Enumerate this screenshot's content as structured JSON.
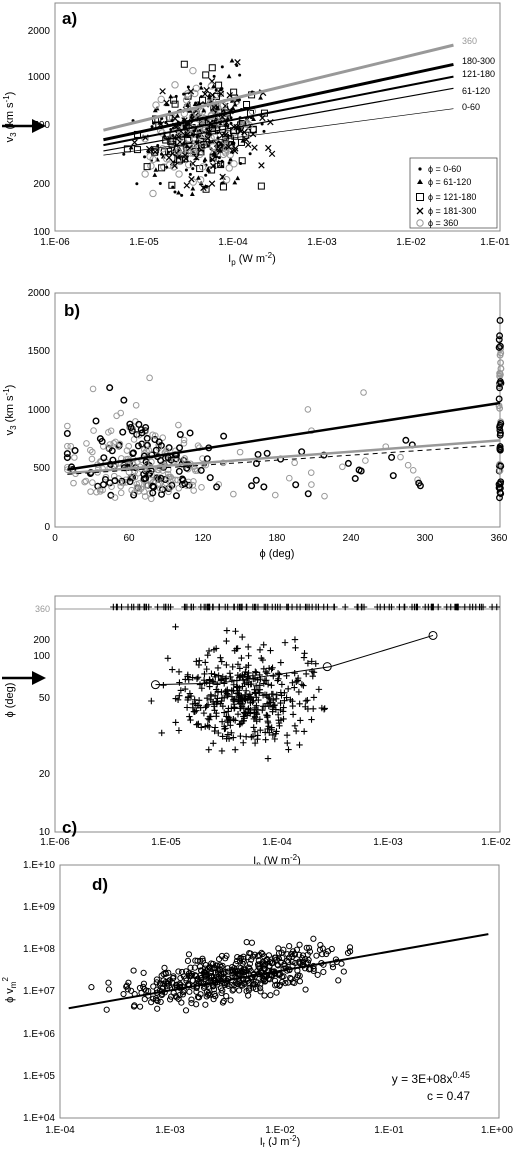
{
  "chart_data": [
    {
      "panel_label": "a)",
      "type": "scatter",
      "xscale": "log",
      "yscale": "log",
      "xlim": [
        1e-06,
        0.1
      ],
      "ylim": [
        100,
        3000
      ],
      "xticks": [
        "1.E-06",
        "1.E-05",
        "1.E-04",
        "1.E-03",
        "1.E-02",
        "1.E-01"
      ],
      "yticks": [
        "100",
        "200",
        "500",
        "1000",
        "2000"
      ],
      "xlabel": "I",
      "xlabel_sub": "p",
      "xlabel_unit": "(W m",
      "xlabel_unit_exp": "-2",
      "xlabel_unit_close": ")",
      "ylabel": "v",
      "ylabel_sub": "3",
      "ylabel_unit": "(km s",
      "ylabel_unit_exp": "-1",
      "ylabel_unit_close": ")",
      "arrow_value": 500,
      "legend_position": "bottom-right",
      "legend": [
        "ϕ = 0-60",
        "ϕ = 61-120",
        "ϕ = 121-180",
        "ϕ = 181-300",
        "ϕ = 360"
      ],
      "fits": [
        {
          "label": "360",
          "from": [
            3.5e-06,
            450
          ],
          "to": [
            0.03,
            1600
          ],
          "color": "#999999",
          "width": 3
        },
        {
          "label": "180-300",
          "from": [
            3.5e-06,
            390
          ],
          "to": [
            0.03,
            1200
          ],
          "color": "#000000",
          "width": 3
        },
        {
          "label": "121-180",
          "from": [
            3.5e-06,
            360
          ],
          "to": [
            0.03,
            1000
          ],
          "color": "#000000",
          "width": 2
        },
        {
          "label": "61-120",
          "from": [
            3.5e-06,
            330
          ],
          "to": [
            0.03,
            840
          ],
          "color": "#000000",
          "width": 1.2
        },
        {
          "label": "0-60",
          "from": [
            3.5e-06,
            310
          ],
          "to": [
            0.03,
            620
          ],
          "color": "#000000",
          "width": 0.7
        }
      ]
    },
    {
      "panel_label": "b)",
      "type": "scatter",
      "xlim": [
        0,
        360
      ],
      "ylim": [
        0,
        2000
      ],
      "xticks": [
        "0",
        "60",
        "120",
        "180",
        "240",
        "300",
        "360"
      ],
      "yticks": [
        "0",
        "500",
        "1000",
        "1500",
        "2000"
      ],
      "xlabel": "ϕ (deg)",
      "ylabel": "v",
      "ylabel_sub": "3",
      "ylabel_unit": "(km s",
      "ylabel_unit_exp": "-1",
      "ylabel_unit_close": ")",
      "fits": [
        {
          "from": [
            10,
            490
          ],
          "to": [
            360,
            1060
          ],
          "color": "#000000",
          "width": 2.5,
          "dash": ""
        },
        {
          "from": [
            10,
            460
          ],
          "to": [
            360,
            740
          ],
          "color": "#999999",
          "width": 2.5,
          "dash": ""
        },
        {
          "from": [
            10,
            450
          ],
          "to": [
            360,
            700
          ],
          "color": "#000000",
          "width": 1,
          "dash": "5,4"
        }
      ]
    },
    {
      "panel_label": "c)",
      "type": "scatter",
      "xscale": "log",
      "yscale": "log",
      "xlim": [
        1e-06,
        0.01
      ],
      "ylim": [
        10,
        500
      ],
      "xticks": [
        "1.E-06",
        "1.E-05",
        "1.E-04",
        "1.E-03",
        "1.E-02"
      ],
      "yticks": [
        "10",
        "20",
        "50",
        "100",
        "200"
      ],
      "y360_label": "360",
      "xlabel": "I",
      "xlabel_sub": "p",
      "xlabel_unit": "(W m",
      "xlabel_unit_exp": "-2",
      "xlabel_unit_close": ")",
      "ylabel": "ϕ (deg)",
      "arrow_value": 100,
      "fit_points": [
        [
          8e-06,
          115
        ],
        [
          0.00028,
          155
        ],
        [
          0.0025,
          260
        ]
      ],
      "fit_line": [
        [
          8e-06,
          115
        ],
        [
          3e-05,
          118
        ],
        [
          0.0003,
          155
        ],
        [
          0.0025,
          260
        ]
      ]
    },
    {
      "panel_label": "d)",
      "type": "scatter",
      "xscale": "log",
      "yscale": "log",
      "xlim": [
        0.0001,
        1
      ],
      "ylim": [
        10000,
        10000000000
      ],
      "xticks": [
        "1.E-04",
        "1.E-03",
        "1.E-02",
        "1.E-01",
        "1.E+00"
      ],
      "yticks": [
        "1.E+04",
        "1.E+05",
        "1.E+06",
        "1.E+07",
        "1.E+08",
        "1.E+09",
        "1.E+10"
      ],
      "xlabel": "I",
      "xlabel_sub": "t",
      "xlabel_unit": "(J m",
      "xlabel_unit_exp": "-2",
      "xlabel_unit_close": ")",
      "ylabel": "ϕ v",
      "ylabel_sub": "m",
      "ylabel_sup": "2",
      "equation": "y = 3E+08x",
      "equation_exp": "0.45",
      "correlation": "c = 0.47",
      "fit": {
        "from": [
          0.00012,
          4000000
        ],
        "to": [
          0.8,
          230000000
        ]
      }
    }
  ]
}
